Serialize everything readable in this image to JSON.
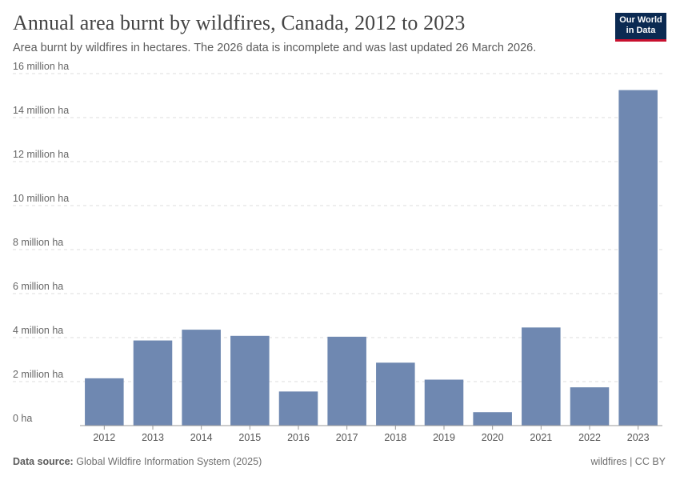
{
  "header": {
    "title": "Annual area burnt by wildfires, Canada, 2012 to 2023",
    "subtitle": "Area burnt by wildfires in hectares. The 2026 data is incomplete and was last updated 26 March 2026."
  },
  "logo": {
    "line1": "Our World",
    "line2": "in Data"
  },
  "footer": {
    "source_label": "Data source:",
    "source_text": "Global Wildfire Information System (2025)",
    "right_text": "wildfires | CC BY"
  },
  "colors": {
    "bar": "#6f88b1",
    "grid": "#dddddd",
    "logo_bg": "#0b2a52",
    "logo_accent": "#c8102e"
  },
  "chart_data": {
    "type": "bar",
    "categories": [
      "2012",
      "2013",
      "2014",
      "2015",
      "2016",
      "2017",
      "2018",
      "2019",
      "2020",
      "2021",
      "2022",
      "2023"
    ],
    "values": [
      2150000,
      3870000,
      4360000,
      4080000,
      1550000,
      4040000,
      2860000,
      2090000,
      610000,
      4460000,
      1740000,
      15250000
    ],
    "ylim": [
      0,
      16000000
    ],
    "yticks": [
      0,
      2000000,
      4000000,
      6000000,
      8000000,
      10000000,
      12000000,
      14000000,
      16000000
    ],
    "ytick_labels": [
      "0 ha",
      "2 million ha",
      "4 million ha",
      "6 million ha",
      "8 million ha",
      "10 million ha",
      "12 million ha",
      "14 million ha",
      "16 million ha"
    ],
    "grid": true,
    "xlabel": "",
    "ylabel": ""
  }
}
